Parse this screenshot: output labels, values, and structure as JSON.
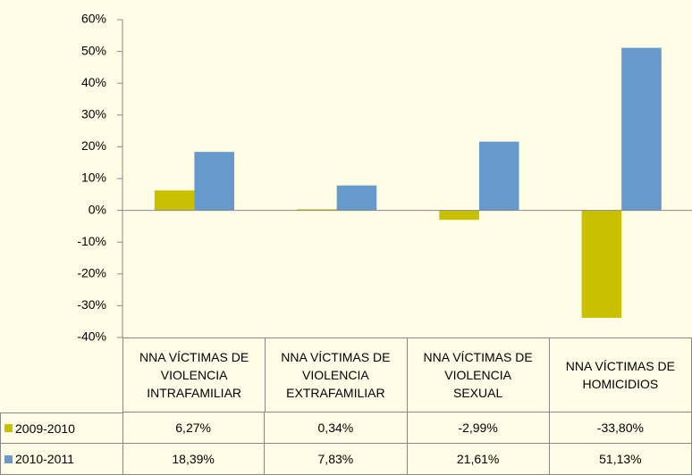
{
  "chart_data": {
    "type": "bar",
    "categories": [
      "NNA VÍCTIMAS DE VIOLENCIA INTRAFAMILIAR",
      "NNA VÍCTIMAS DE VIOLENCIA EXTRAFAMILIAR",
      "NNA VÍCTIMAS DE VIOLENCIA SEXUAL",
      "NNA VÍCTIMAS DE HOMICIDIOS"
    ],
    "series": [
      {
        "name": "2009-2010",
        "color": "#c8c000",
        "values": [
          6.27,
          0.34,
          -2.99,
          -33.8
        ],
        "value_labels": [
          "6,27%",
          "0,34%",
          "-2,99%",
          "-33,80%"
        ]
      },
      {
        "name": "2010-2011",
        "color": "#6699cc",
        "values": [
          18.39,
          7.83,
          21.61,
          51.13
        ],
        "value_labels": [
          "18,39%",
          "7,83%",
          "21,61%",
          "51,13%"
        ]
      }
    ],
    "ylim": [
      -40,
      60
    ],
    "yticks": [
      {
        "value": -40,
        "label": "-40%"
      },
      {
        "value": -30,
        "label": "-30%"
      },
      {
        "value": -20,
        "label": "-20%"
      },
      {
        "value": -10,
        "label": "-10%"
      },
      {
        "value": 0,
        "label": "0%"
      },
      {
        "value": 10,
        "label": "10%"
      },
      {
        "value": 20,
        "label": "20%"
      },
      {
        "value": 30,
        "label": "30%"
      },
      {
        "value": 40,
        "label": "40%"
      },
      {
        "value": 50,
        "label": "50%"
      },
      {
        "value": 60,
        "label": "60%"
      }
    ]
  }
}
